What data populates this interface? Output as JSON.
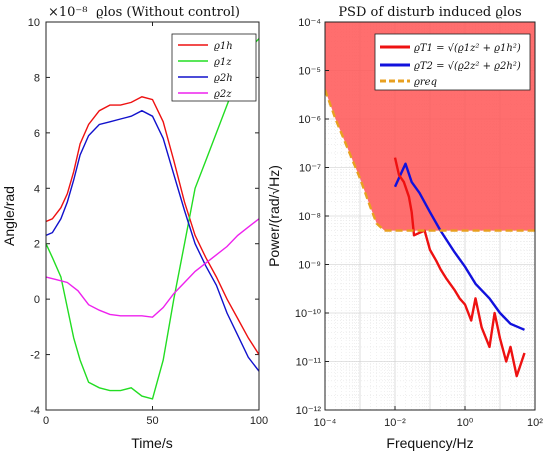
{
  "chart_data": [
    {
      "type": "line",
      "title": "ϱlos (Without control)",
      "multiplier": "×10⁻⁸",
      "xlabel": "Time/s",
      "ylabel": "Angle/rad",
      "xlim": [
        0,
        100
      ],
      "ylim": [
        -4,
        10
      ],
      "x_ticks": [
        "0",
        "50",
        "100"
      ],
      "y_ticks": [
        "-4",
        "-2",
        "0",
        "2",
        "4",
        "6",
        "8",
        "10"
      ],
      "grid": false,
      "legend_position": "top-right",
      "series": [
        {
          "name": "ϱ1h",
          "color": "#ee1111",
          "x": [
            0,
            3,
            7,
            10,
            13,
            16,
            20,
            25,
            30,
            35,
            40,
            45,
            50,
            55,
            60,
            65,
            70,
            75,
            80,
            85,
            90,
            95,
            100
          ],
          "y": [
            2.8,
            2.9,
            3.3,
            3.8,
            4.6,
            5.6,
            6.3,
            6.8,
            7.0,
            7.0,
            7.1,
            7.3,
            7.2,
            6.4,
            5.0,
            3.5,
            2.3,
            1.5,
            0.8,
            0.0,
            -0.7,
            -1.4,
            -2.0
          ]
        },
        {
          "name": "ϱ1z",
          "color": "#22dd22",
          "x": [
            0,
            3,
            7,
            10,
            13,
            16,
            20,
            25,
            30,
            35,
            40,
            45,
            50,
            55,
            60,
            65,
            70,
            75,
            80,
            85,
            90,
            95,
            100
          ],
          "y": [
            2.0,
            1.5,
            0.8,
            -0.3,
            -1.4,
            -2.2,
            -3.0,
            -3.2,
            -3.3,
            -3.3,
            -3.2,
            -3.5,
            -3.6,
            -2.2,
            0.0,
            2.0,
            4.0,
            5.0,
            6.0,
            7.0,
            8.0,
            9.0,
            9.4
          ]
        },
        {
          "name": "ϱ2h",
          "color": "#1111cc",
          "x": [
            0,
            3,
            7,
            10,
            13,
            16,
            20,
            25,
            30,
            35,
            40,
            45,
            50,
            55,
            60,
            65,
            70,
            75,
            80,
            85,
            90,
            95,
            100
          ],
          "y": [
            2.3,
            2.4,
            2.9,
            3.5,
            4.3,
            5.2,
            5.9,
            6.3,
            6.4,
            6.5,
            6.6,
            6.8,
            6.6,
            5.8,
            4.5,
            3.2,
            2.0,
            1.2,
            0.5,
            -0.5,
            -1.3,
            -2.1,
            -2.6
          ]
        },
        {
          "name": "ϱ2z",
          "color": "#ee22ee",
          "x": [
            0,
            5,
            10,
            15,
            20,
            25,
            30,
            35,
            40,
            45,
            50,
            55,
            60,
            65,
            70,
            75,
            80,
            85,
            90,
            95,
            100
          ],
          "y": [
            0.8,
            0.7,
            0.6,
            0.3,
            -0.2,
            -0.4,
            -0.55,
            -0.6,
            -0.6,
            -0.6,
            -0.65,
            -0.3,
            0.2,
            0.6,
            1.0,
            1.3,
            1.6,
            1.9,
            2.3,
            2.6,
            2.9
          ]
        }
      ]
    },
    {
      "type": "line",
      "title": "PSD of disturb induced ϱlos",
      "xlabel": "Frequency/Hz",
      "ylabel": "Power/(rad/√Hz)",
      "xscale": "log",
      "yscale": "log",
      "xlim": [
        0.0001,
        100
      ],
      "ylim": [
        1e-12,
        0.0001
      ],
      "x_ticks": [
        "10⁻⁴",
        "10⁻²",
        "10⁰",
        "10²"
      ],
      "y_ticks": [
        "10⁻¹²",
        "10⁻¹¹",
        "10⁻¹⁰",
        "10⁻⁹",
        "10⁻⁸",
        "10⁻⁷",
        "10⁻⁶",
        "10⁻⁵",
        "10⁻⁴"
      ],
      "grid": true,
      "legend_position": "top-right",
      "shaded_region_color": "#ff5555",
      "series": [
        {
          "name": "ϱT1 = √(ϱ1z² + ϱ1h²)",
          "color": "#ee1111",
          "x": [
            0.01,
            0.013,
            0.018,
            0.025,
            0.03,
            0.035,
            0.05,
            0.07,
            0.1,
            0.15,
            0.2,
            0.3,
            0.5,
            0.7,
            1,
            1.5,
            2,
            3,
            5,
            7,
            10,
            15,
            20,
            30,
            50
          ],
          "y": [
            1.6e-07,
            7e-08,
            5e-08,
            2.5e-08,
            1.2e-08,
            4e-09,
            4.5e-09,
            5e-09,
            2e-09,
            1.2e-09,
            8e-10,
            5e-10,
            3e-10,
            2e-10,
            1.5e-10,
            7e-11,
            2e-10,
            5e-11,
            2e-11,
            1e-10,
            3e-11,
            1e-11,
            2e-11,
            5e-12,
            1.5e-11
          ]
        },
        {
          "name": "ϱT2 = √(ϱ2z² + ϱ2h²)",
          "color": "#1111dd",
          "x": [
            0.01,
            0.02,
            0.03,
            0.05,
            0.1,
            0.2,
            0.5,
            1,
            2,
            5,
            10,
            20,
            50
          ],
          "y": [
            4e-08,
            1.2e-07,
            5e-08,
            3e-08,
            1.2e-08,
            5e-09,
            1.8e-09,
            9e-10,
            4e-10,
            2e-10,
            1e-10,
            6e-11,
            4.5e-11
          ]
        },
        {
          "name": "ϱreq",
          "color": "#e8a020",
          "x": [
            0.0001,
            0.0002,
            0.0005,
            0.001,
            0.002,
            0.003,
            0.005,
            0.01,
            100
          ],
          "y": [
            4e-06,
            1e-06,
            2e-07,
            6e-08,
            1.5e-08,
            7e-09,
            5e-09,
            5e-09,
            5e-09
          ]
        }
      ]
    }
  ]
}
